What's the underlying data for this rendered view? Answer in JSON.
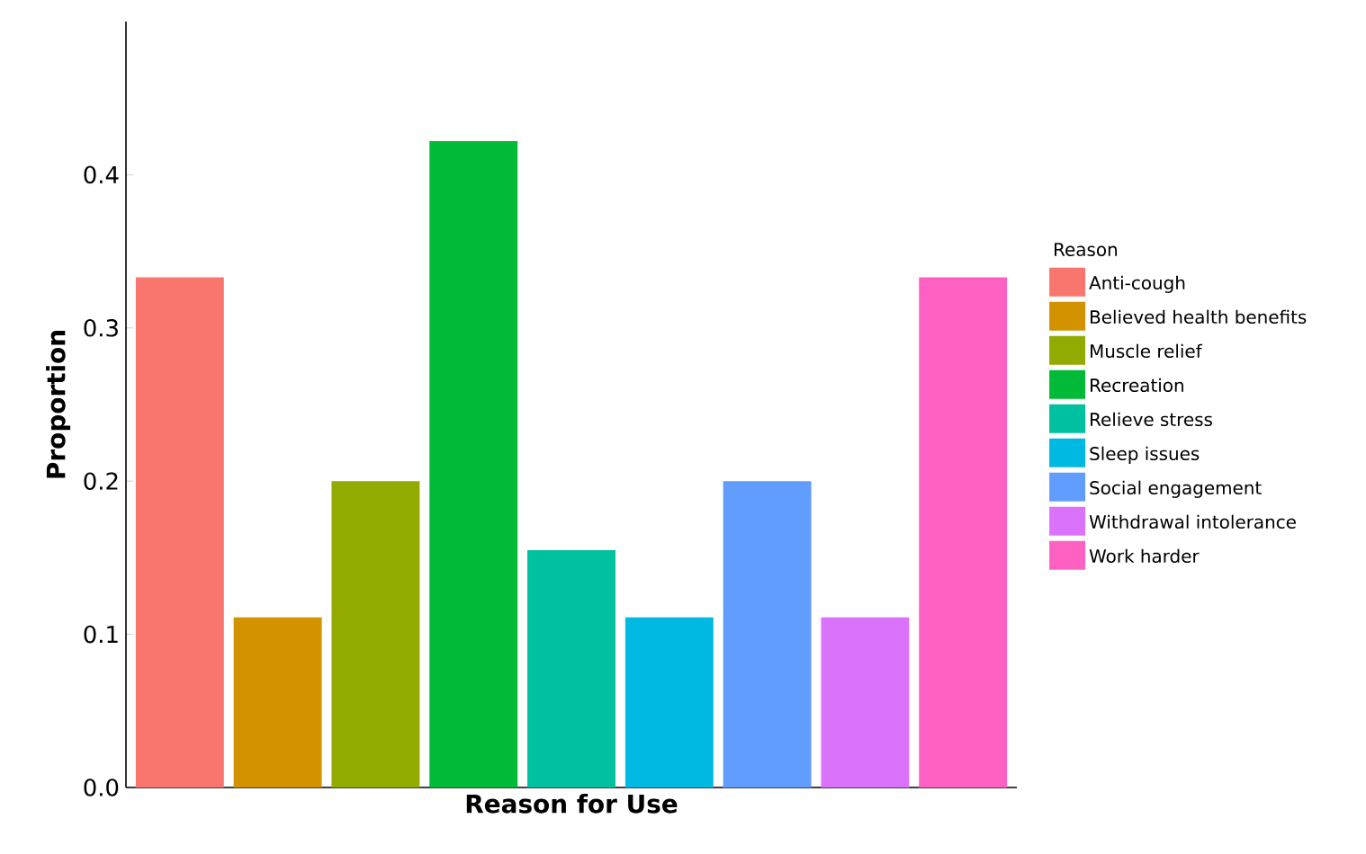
{
  "chart_data": {
    "type": "bar",
    "xlabel": "Reason for Use",
    "ylabel": "Proportion",
    "legend_title": "Reason",
    "categories": [
      null,
      null,
      null,
      null,
      null,
      null,
      null,
      null,
      null
    ],
    "series": [
      {
        "name": "Anti-cough",
        "color": "#f8766d",
        "values": [
          0.333,
          null,
          null,
          null,
          null,
          null,
          null,
          null,
          null
        ]
      },
      {
        "name": "Believed health benefits",
        "color": "#d39200",
        "values": [
          null,
          0.111,
          null,
          null,
          null,
          null,
          null,
          null,
          null
        ]
      },
      {
        "name": "Muscle relief",
        "color": "#93aa00",
        "values": [
          null,
          null,
          0.2,
          null,
          null,
          null,
          null,
          null,
          null
        ]
      },
      {
        "name": "Recreation",
        "color": "#00ba38",
        "values": [
          null,
          null,
          null,
          0.422,
          null,
          null,
          null,
          null,
          null
        ]
      },
      {
        "name": "Relieve stress",
        "color": "#00c19f",
        "values": [
          null,
          null,
          null,
          null,
          0.155,
          null,
          null,
          null,
          null
        ]
      },
      {
        "name": "Sleep issues",
        "color": "#00b9e3",
        "values": [
          null,
          null,
          null,
          null,
          null,
          0.111,
          null,
          null,
          null
        ]
      },
      {
        "name": "Social engagement",
        "color": "#619cff",
        "values": [
          null,
          null,
          null,
          null,
          null,
          null,
          0.2,
          null,
          null
        ]
      },
      {
        "name": "Withdrawal intolerance",
        "color": "#db72fb",
        "values": [
          null,
          null,
          null,
          null,
          null,
          null,
          null,
          0.111,
          null
        ]
      },
      {
        "name": "Work harder",
        "color": "#ff61c3",
        "values": [
          null,
          null,
          null,
          null,
          null,
          null,
          null,
          null,
          0.333
        ]
      }
    ],
    "ylim": [
      0,
      0.5
    ],
    "yticks": [
      {
        "value": 0,
        "label": "0.0"
      },
      {
        "value": 0.1,
        "label": "0.1"
      },
      {
        "value": 0.2,
        "label": "0.2"
      },
      {
        "value": 0.3,
        "label": "0.3"
      },
      {
        "value": 0.4,
        "label": "0.4"
      }
    ],
    "tick_labels": "y",
    "legend": "right",
    "grid": false
  }
}
